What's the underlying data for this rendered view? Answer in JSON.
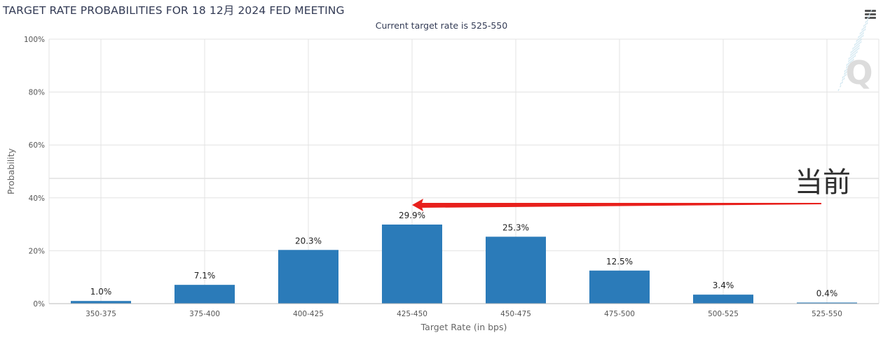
{
  "header": {
    "title": "TARGET RATE PROBABILITIES FOR 18 12月 2024 FED MEETING",
    "menu_icon": "hamburger-menu-icon"
  },
  "annotation": {
    "text": "当前",
    "arrow_color": "#e8201c"
  },
  "watermark": {
    "letter": "Q"
  },
  "colors": {
    "bar": "#2b7bb9",
    "grid": "#e3e3e3",
    "text": "#333333"
  },
  "chart_data": {
    "type": "bar",
    "title": "TARGET RATE PROBABILITIES FOR 18 12月 2024 FED MEETING",
    "subtitle": "Current target rate is 525-550",
    "xlabel": "Target Rate (in bps)",
    "ylabel": "Probability",
    "categories": [
      "350-375",
      "375-400",
      "400-425",
      "425-450",
      "450-475",
      "475-500",
      "500-525",
      "525-550"
    ],
    "values": [
      1.0,
      7.1,
      20.3,
      29.9,
      25.3,
      12.5,
      3.4,
      0.4
    ],
    "data_labels": [
      "1.0%",
      "7.1%",
      "20.3%",
      "29.9%",
      "25.3%",
      "12.5%",
      "3.4%",
      "0.4%"
    ],
    "ylim": [
      0,
      100
    ],
    "yticks": [
      0,
      20,
      40,
      60,
      80,
      100
    ],
    "ytick_labels": [
      "0%",
      "20%",
      "40%",
      "60%",
      "80%",
      "100%"
    ],
    "grid": true,
    "legend": "none"
  }
}
